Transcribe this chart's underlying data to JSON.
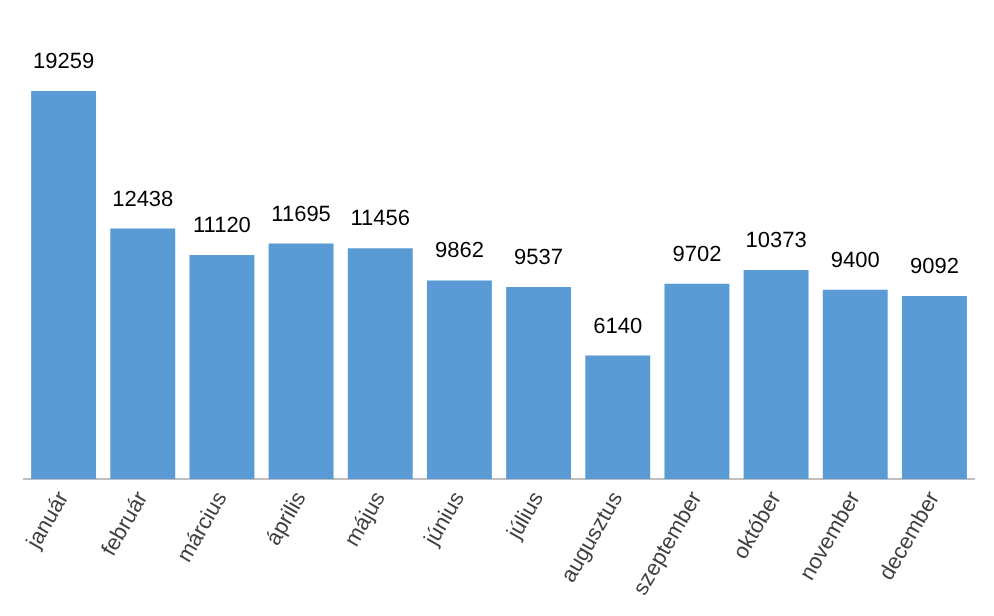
{
  "chart_data": {
    "type": "bar",
    "categories": [
      "január",
      "február",
      "március",
      "április",
      "május",
      "június",
      "július",
      "augusztus",
      "szeptember",
      "október",
      "november",
      "december"
    ],
    "values": [
      19259,
      12438,
      11120,
      11695,
      11456,
      9862,
      9537,
      6140,
      9702,
      10373,
      9400,
      9092
    ],
    "color": "#5b9bd5",
    "data_labels": true,
    "grid": false,
    "legend": false
  }
}
